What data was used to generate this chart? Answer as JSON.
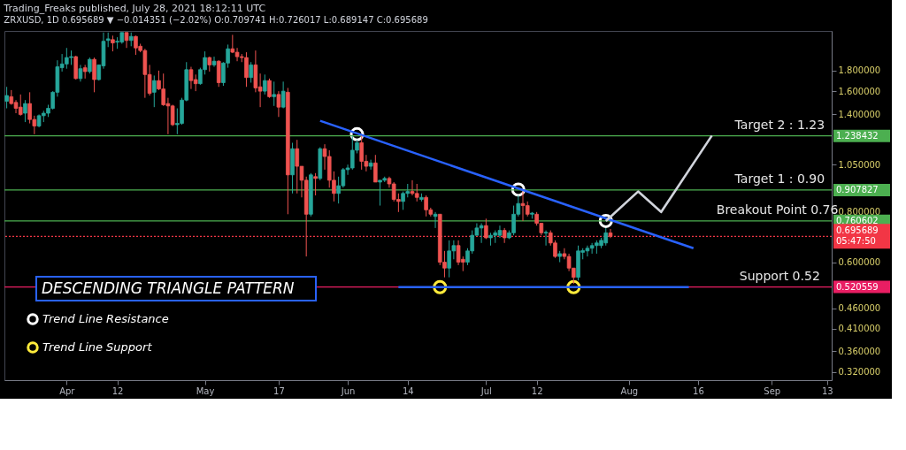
{
  "chart_data": {
    "type": "candlestick",
    "title": "Trading_Freaks published, July 28, 2021 18:12:11 UTC",
    "subtitle": "ZRXUSD, 1D  0.695689 ▼ −0.014351 (−2.02%)  O:0.709741  H:0.726017  L:0.689147  C:0.695689",
    "x": [
      "2021-03-19",
      "2021-03-20",
      "2021-03-21",
      "2021-03-22",
      "2021-03-23",
      "2021-03-24",
      "2021-03-25",
      "2021-03-26",
      "2021-03-27",
      "2021-03-28",
      "2021-03-29",
      "2021-03-30",
      "2021-03-31",
      "2021-04-01",
      "2021-04-02",
      "2021-04-03",
      "2021-04-04",
      "2021-04-05",
      "2021-04-06",
      "2021-04-07",
      "2021-04-08",
      "2021-04-09",
      "2021-04-10",
      "2021-04-11",
      "2021-04-12",
      "2021-04-13",
      "2021-04-14",
      "2021-04-15",
      "2021-04-16",
      "2021-04-17",
      "2021-04-18",
      "2021-04-19",
      "2021-04-20",
      "2021-04-21",
      "2021-04-22",
      "2021-04-23",
      "2021-04-24",
      "2021-04-25",
      "2021-04-26",
      "2021-04-27",
      "2021-04-28",
      "2021-04-29",
      "2021-04-30",
      "2021-05-01",
      "2021-05-02",
      "2021-05-03",
      "2021-05-04",
      "2021-05-05",
      "2021-05-06",
      "2021-05-07",
      "2021-05-08",
      "2021-05-09",
      "2021-05-10",
      "2021-05-11",
      "2021-05-12",
      "2021-05-13",
      "2021-05-14",
      "2021-05-15",
      "2021-05-16",
      "2021-05-17",
      "2021-05-18",
      "2021-05-19",
      "2021-05-20",
      "2021-05-21",
      "2021-05-22",
      "2021-05-23",
      "2021-05-24",
      "2021-05-25",
      "2021-05-26",
      "2021-05-27",
      "2021-05-28",
      "2021-05-29",
      "2021-05-30",
      "2021-05-31",
      "2021-06-01",
      "2021-06-02",
      "2021-06-03",
      "2021-06-04",
      "2021-06-05",
      "2021-06-06",
      "2021-06-07",
      "2021-06-08",
      "2021-06-09",
      "2021-06-10",
      "2021-06-11",
      "2021-06-12",
      "2021-06-13",
      "2021-06-14",
      "2021-06-15",
      "2021-06-16",
      "2021-06-17",
      "2021-06-18",
      "2021-06-19",
      "2021-06-20",
      "2021-06-21",
      "2021-06-22",
      "2021-06-23",
      "2021-06-24",
      "2021-06-25",
      "2021-06-26",
      "2021-06-27",
      "2021-06-28",
      "2021-06-29",
      "2021-06-30",
      "2021-07-01",
      "2021-07-02",
      "2021-07-03",
      "2021-07-04",
      "2021-07-05",
      "2021-07-06",
      "2021-07-07",
      "2021-07-08",
      "2021-07-09",
      "2021-07-10",
      "2021-07-11",
      "2021-07-12",
      "2021-07-13",
      "2021-07-14",
      "2021-07-15",
      "2021-07-16",
      "2021-07-17",
      "2021-07-18",
      "2021-07-19",
      "2021-07-20",
      "2021-07-21",
      "2021-07-22",
      "2021-07-23",
      "2021-07-24",
      "2021-07-25",
      "2021-07-26",
      "2021-07-27",
      "2021-07-28"
    ],
    "ohlc": [
      [
        1.51,
        1.64,
        1.45,
        1.56
      ],
      [
        1.55,
        1.61,
        1.48,
        1.49
      ],
      [
        1.5,
        1.52,
        1.41,
        1.45
      ],
      [
        1.46,
        1.57,
        1.39,
        1.4
      ],
      [
        1.41,
        1.52,
        1.34,
        1.49
      ],
      [
        1.49,
        1.59,
        1.33,
        1.36
      ],
      [
        1.36,
        1.39,
        1.25,
        1.31
      ],
      [
        1.31,
        1.4,
        1.3,
        1.39
      ],
      [
        1.39,
        1.43,
        1.34,
        1.41
      ],
      [
        1.41,
        1.48,
        1.38,
        1.45
      ],
      [
        1.45,
        1.6,
        1.44,
        1.59
      ],
      [
        1.59,
        1.91,
        1.55,
        1.84
      ],
      [
        1.83,
        1.98,
        1.79,
        1.87
      ],
      [
        1.87,
        2.05,
        1.82,
        1.94
      ],
      [
        1.94,
        2.02,
        1.86,
        1.95
      ],
      [
        1.95,
        1.96,
        1.71,
        1.72
      ],
      [
        1.72,
        1.86,
        1.69,
        1.82
      ],
      [
        1.83,
        1.86,
        1.72,
        1.79
      ],
      [
        1.79,
        1.94,
        1.77,
        1.92
      ],
      [
        1.92,
        1.94,
        1.59,
        1.71
      ],
      [
        1.71,
        1.86,
        1.7,
        1.86
      ],
      [
        1.85,
        2.24,
        1.82,
        2.13
      ],
      [
        2.14,
        2.24,
        2.06,
        2.16
      ],
      [
        2.15,
        2.2,
        2.01,
        2.11
      ],
      [
        2.12,
        2.18,
        2.04,
        2.13
      ],
      [
        2.12,
        2.24,
        2.1,
        2.24
      ],
      [
        2.24,
        2.24,
        2.05,
        2.14
      ],
      [
        2.14,
        2.24,
        2.07,
        2.19
      ],
      [
        2.19,
        2.2,
        1.97,
        2.05
      ],
      [
        2.07,
        2.1,
        2.0,
        2.02
      ],
      [
        2.02,
        2.04,
        1.54,
        1.76
      ],
      [
        1.76,
        1.86,
        1.56,
        1.58
      ],
      [
        1.59,
        1.75,
        1.46,
        1.7
      ],
      [
        1.7,
        1.8,
        1.61,
        1.62
      ],
      [
        1.62,
        1.77,
        1.47,
        1.48
      ],
      [
        1.49,
        1.54,
        1.25,
        1.47
      ],
      [
        1.47,
        1.48,
        1.31,
        1.32
      ],
      [
        1.32,
        1.45,
        1.25,
        1.33
      ],
      [
        1.33,
        1.54,
        1.32,
        1.52
      ],
      [
        1.52,
        1.89,
        1.51,
        1.81
      ],
      [
        1.81,
        1.84,
        1.62,
        1.7
      ],
      [
        1.71,
        1.76,
        1.6,
        1.67
      ],
      [
        1.67,
        1.83,
        1.66,
        1.81
      ],
      [
        1.81,
        2.01,
        1.76,
        1.94
      ],
      [
        1.94,
        1.95,
        1.79,
        1.86
      ],
      [
        1.86,
        1.95,
        1.84,
        1.9
      ],
      [
        1.9,
        1.91,
        1.64,
        1.68
      ],
      [
        1.68,
        1.89,
        1.65,
        1.88
      ],
      [
        1.88,
        2.09,
        1.83,
        2.04
      ],
      [
        2.04,
        2.21,
        1.99,
        2.0
      ],
      [
        2.0,
        2.05,
        1.9,
        1.95
      ],
      [
        1.95,
        1.98,
        1.89,
        1.94
      ],
      [
        1.94,
        2.0,
        1.64,
        1.73
      ],
      [
        1.73,
        1.89,
        1.68,
        1.86
      ],
      [
        1.86,
        2.02,
        1.59,
        1.63
      ],
      [
        1.64,
        1.77,
        1.46,
        1.6
      ],
      [
        1.6,
        1.76,
        1.57,
        1.7
      ],
      [
        1.7,
        1.72,
        1.54,
        1.55
      ],
      [
        1.55,
        1.69,
        1.47,
        1.57
      ],
      [
        1.57,
        1.6,
        1.38,
        1.46
      ],
      [
        1.46,
        1.69,
        1.45,
        1.6
      ],
      [
        1.59,
        1.63,
        0.79,
        0.99
      ],
      [
        0.99,
        1.19,
        0.89,
        1.15
      ],
      [
        1.15,
        1.21,
        0.89,
        1.04
      ],
      [
        1.04,
        1.04,
        0.87,
        0.96
      ],
      [
        0.96,
        0.98,
        0.62,
        0.79
      ],
      [
        0.79,
        1.0,
        0.78,
        0.99
      ],
      [
        0.98,
        1.0,
        0.88,
        0.97
      ],
      [
        0.97,
        1.16,
        0.96,
        1.15
      ],
      [
        1.15,
        1.18,
        1.02,
        1.1
      ],
      [
        1.1,
        1.14,
        0.92,
        0.96
      ],
      [
        0.96,
        1.01,
        0.85,
        0.89
      ],
      [
        0.89,
        0.98,
        0.84,
        0.93
      ],
      [
        0.93,
        1.03,
        0.92,
        1.02
      ],
      [
        1.02,
        1.05,
        0.99,
        1.03
      ],
      [
        1.03,
        1.24,
        1.02,
        1.14
      ],
      [
        1.14,
        1.21,
        1.12,
        1.19
      ],
      [
        1.19,
        1.24,
        1.02,
        1.07
      ],
      [
        1.07,
        1.11,
        1.01,
        1.04
      ],
      [
        1.04,
        1.08,
        1.02,
        1.06
      ],
      [
        1.06,
        1.11,
        0.95,
        0.95
      ],
      [
        0.95,
        0.96,
        0.83,
        0.96
      ],
      [
        0.96,
        0.98,
        0.95,
        0.97
      ],
      [
        0.97,
        0.98,
        0.92,
        0.94
      ],
      [
        0.94,
        0.95,
        0.85,
        0.86
      ],
      [
        0.86,
        0.89,
        0.8,
        0.85
      ],
      [
        0.85,
        0.9,
        0.81,
        0.89
      ],
      [
        0.89,
        0.94,
        0.87,
        0.9
      ],
      [
        0.9,
        0.96,
        0.88,
        0.89
      ],
      [
        0.89,
        0.94,
        0.85,
        0.87
      ],
      [
        0.86,
        0.89,
        0.85,
        0.87
      ],
      [
        0.87,
        0.88,
        0.78,
        0.81
      ],
      [
        0.81,
        0.82,
        0.78,
        0.79
      ],
      [
        0.78,
        0.8,
        0.73,
        0.79
      ],
      [
        0.79,
        0.79,
        0.59,
        0.6
      ],
      [
        0.6,
        0.64,
        0.55,
        0.58
      ],
      [
        0.58,
        0.68,
        0.55,
        0.64
      ],
      [
        0.64,
        0.68,
        0.61,
        0.66
      ],
      [
        0.66,
        0.68,
        0.59,
        0.6
      ],
      [
        0.61,
        0.62,
        0.57,
        0.6
      ],
      [
        0.6,
        0.65,
        0.59,
        0.64
      ],
      [
        0.64,
        0.72,
        0.63,
        0.7
      ],
      [
        0.7,
        0.75,
        0.7,
        0.73
      ],
      [
        0.73,
        0.75,
        0.67,
        0.74
      ],
      [
        0.74,
        0.77,
        0.685,
        0.69
      ],
      [
        0.69,
        0.71,
        0.66,
        0.7
      ],
      [
        0.7,
        0.72,
        0.67,
        0.71
      ],
      [
        0.7,
        0.74,
        0.69,
        0.72
      ],
      [
        0.72,
        0.73,
        0.67,
        0.69
      ],
      [
        0.69,
        0.72,
        0.685,
        0.71
      ],
      [
        0.71,
        0.83,
        0.7,
        0.79
      ],
      [
        0.79,
        0.88,
        0.78,
        0.84
      ],
      [
        0.84,
        0.9,
        0.76,
        0.83
      ],
      [
        0.83,
        0.85,
        0.78,
        0.79
      ],
      [
        0.79,
        0.8,
        0.77,
        0.795
      ],
      [
        0.79,
        0.8,
        0.74,
        0.75
      ],
      [
        0.75,
        0.75,
        0.7,
        0.71
      ],
      [
        0.709,
        0.72,
        0.66,
        0.712
      ],
      [
        0.71,
        0.72,
        0.66,
        0.67
      ],
      [
        0.67,
        0.68,
        0.615,
        0.62
      ],
      [
        0.62,
        0.64,
        0.6,
        0.63
      ],
      [
        0.63,
        0.65,
        0.61,
        0.62
      ],
      [
        0.62,
        0.63,
        0.57,
        0.58
      ],
      [
        0.58,
        0.58,
        0.53,
        0.55
      ],
      [
        0.55,
        0.66,
        0.54,
        0.64
      ],
      [
        0.635,
        0.65,
        0.61,
        0.641
      ],
      [
        0.64,
        0.66,
        0.62,
        0.65
      ],
      [
        0.65,
        0.67,
        0.63,
        0.66
      ],
      [
        0.66,
        0.68,
        0.63,
        0.67
      ],
      [
        0.66,
        0.69,
        0.65,
        0.68
      ],
      [
        0.67,
        0.73,
        0.66,
        0.71
      ],
      [
        0.709741,
        0.726017,
        0.689147,
        0.695689
      ]
    ],
    "series": [
      {
        "name": "Trend Line Resistance",
        "type": "scatter",
        "marker": "circle",
        "color": "#ffffff",
        "x": [
          "2021-06-03",
          "2021-07-08",
          "2021-07-27"
        ],
        "values": [
          1.25,
          0.91,
          0.76
        ]
      },
      {
        "name": "Trend Line Support",
        "type": "scatter",
        "marker": "circle",
        "color": "#ffeb3b",
        "x": [
          "2021-06-21",
          "2021-07-20"
        ],
        "values": [
          0.52,
          0.52
        ]
      },
      {
        "type": "line",
        "marker": "none",
        "color": "#2962ff",
        "x": [
          "2021-05-26",
          "2021-08-15"
        ],
        "values": [
          1.35,
          0.65
        ]
      },
      {
        "type": "line",
        "marker": "none",
        "color": "#2962ff",
        "x": [
          "2021-06-12",
          "2021-08-14"
        ],
        "values": [
          0.52,
          0.52
        ]
      },
      {
        "type": "line",
        "marker": "none",
        "color": "#d1d4dc",
        "x": [
          "2021-07-27",
          "2021-08-03",
          "2021-08-08",
          "2021-08-19"
        ],
        "values": [
          0.76,
          0.9,
          0.8,
          1.24
        ]
      }
    ],
    "ref_lines": [
      {
        "axis": "y",
        "value": 1.238432,
        "label": "1.238432",
        "color": "#4caf50"
      },
      {
        "axis": "y",
        "value": 0.907827,
        "label": "0.907827",
        "color": "#4caf50"
      },
      {
        "axis": "y",
        "value": 0.760602,
        "label": "0.760602",
        "color": "#4caf50"
      },
      {
        "axis": "y",
        "value": 0.695689,
        "label": "0.695689\n05:47:50",
        "color": "#f23645",
        "line_style": "dotted"
      },
      {
        "axis": "y",
        "value": 0.520559,
        "label": "0.520559",
        "color": "#e91e63"
      }
    ],
    "annotations": [
      "DESCENDING TRIANGLE PATTERN",
      {
        "text": "Target 2 : 1.23",
        "x": "2021-08-24",
        "y": 1.238432
      },
      {
        "text": "Target 1 : 0.90",
        "x": "2021-08-24",
        "y": 0.907827
      },
      {
        "text": "Breakout Point 0.76",
        "x": "2021-08-20",
        "y": 0.760602
      },
      {
        "text": "Support 0.52",
        "x": "2021-08-25",
        "y": 0.520559
      }
    ],
    "xlim": [
      "2021-03-18T12:00",
      "2021-09-14"
    ],
    "xticks": [
      {
        "value": "2021-04-01",
        "label": "Apr"
      },
      {
        "value": "2021-04-12",
        "label": "12"
      },
      {
        "value": "2021-05-01",
        "label": "May"
      },
      {
        "value": "2021-05-17",
        "label": "17"
      },
      {
        "value": "2021-06-01",
        "label": "Jun"
      },
      {
        "value": "2021-06-14",
        "label": "14"
      },
      {
        "value": "2021-07-01",
        "label": "Jul"
      },
      {
        "value": "2021-07-12",
        "label": "12"
      },
      {
        "value": "2021-08-01",
        "label": "Aug"
      },
      {
        "value": "2021-08-16",
        "label": "16"
      },
      {
        "value": "2021-09-01",
        "label": "Sep"
      },
      {
        "value": "2021-09-13",
        "label": "13"
      }
    ],
    "ylim": [
      0.305,
      2.26
    ],
    "yticks": [
      {
        "value": 0.32,
        "label": "0.320000"
      },
      {
        "value": 0.36,
        "label": "0.360000"
      },
      {
        "value": 0.41,
        "label": "0.410000"
      },
      {
        "value": 0.46,
        "label": "0.460000"
      },
      {
        "value": 0.6,
        "label": "0.600000"
      },
      {
        "value": 0.8,
        "label": "0.800000"
      },
      {
        "value": 1.05,
        "label": "1.050000"
      },
      {
        "value": 1.4,
        "label": "1.400000"
      },
      {
        "value": 1.6,
        "label": "1.600000"
      },
      {
        "value": 1.8,
        "label": "1.800000"
      }
    ],
    "log": true,
    "grid": false,
    "legend": "bottom left"
  }
}
